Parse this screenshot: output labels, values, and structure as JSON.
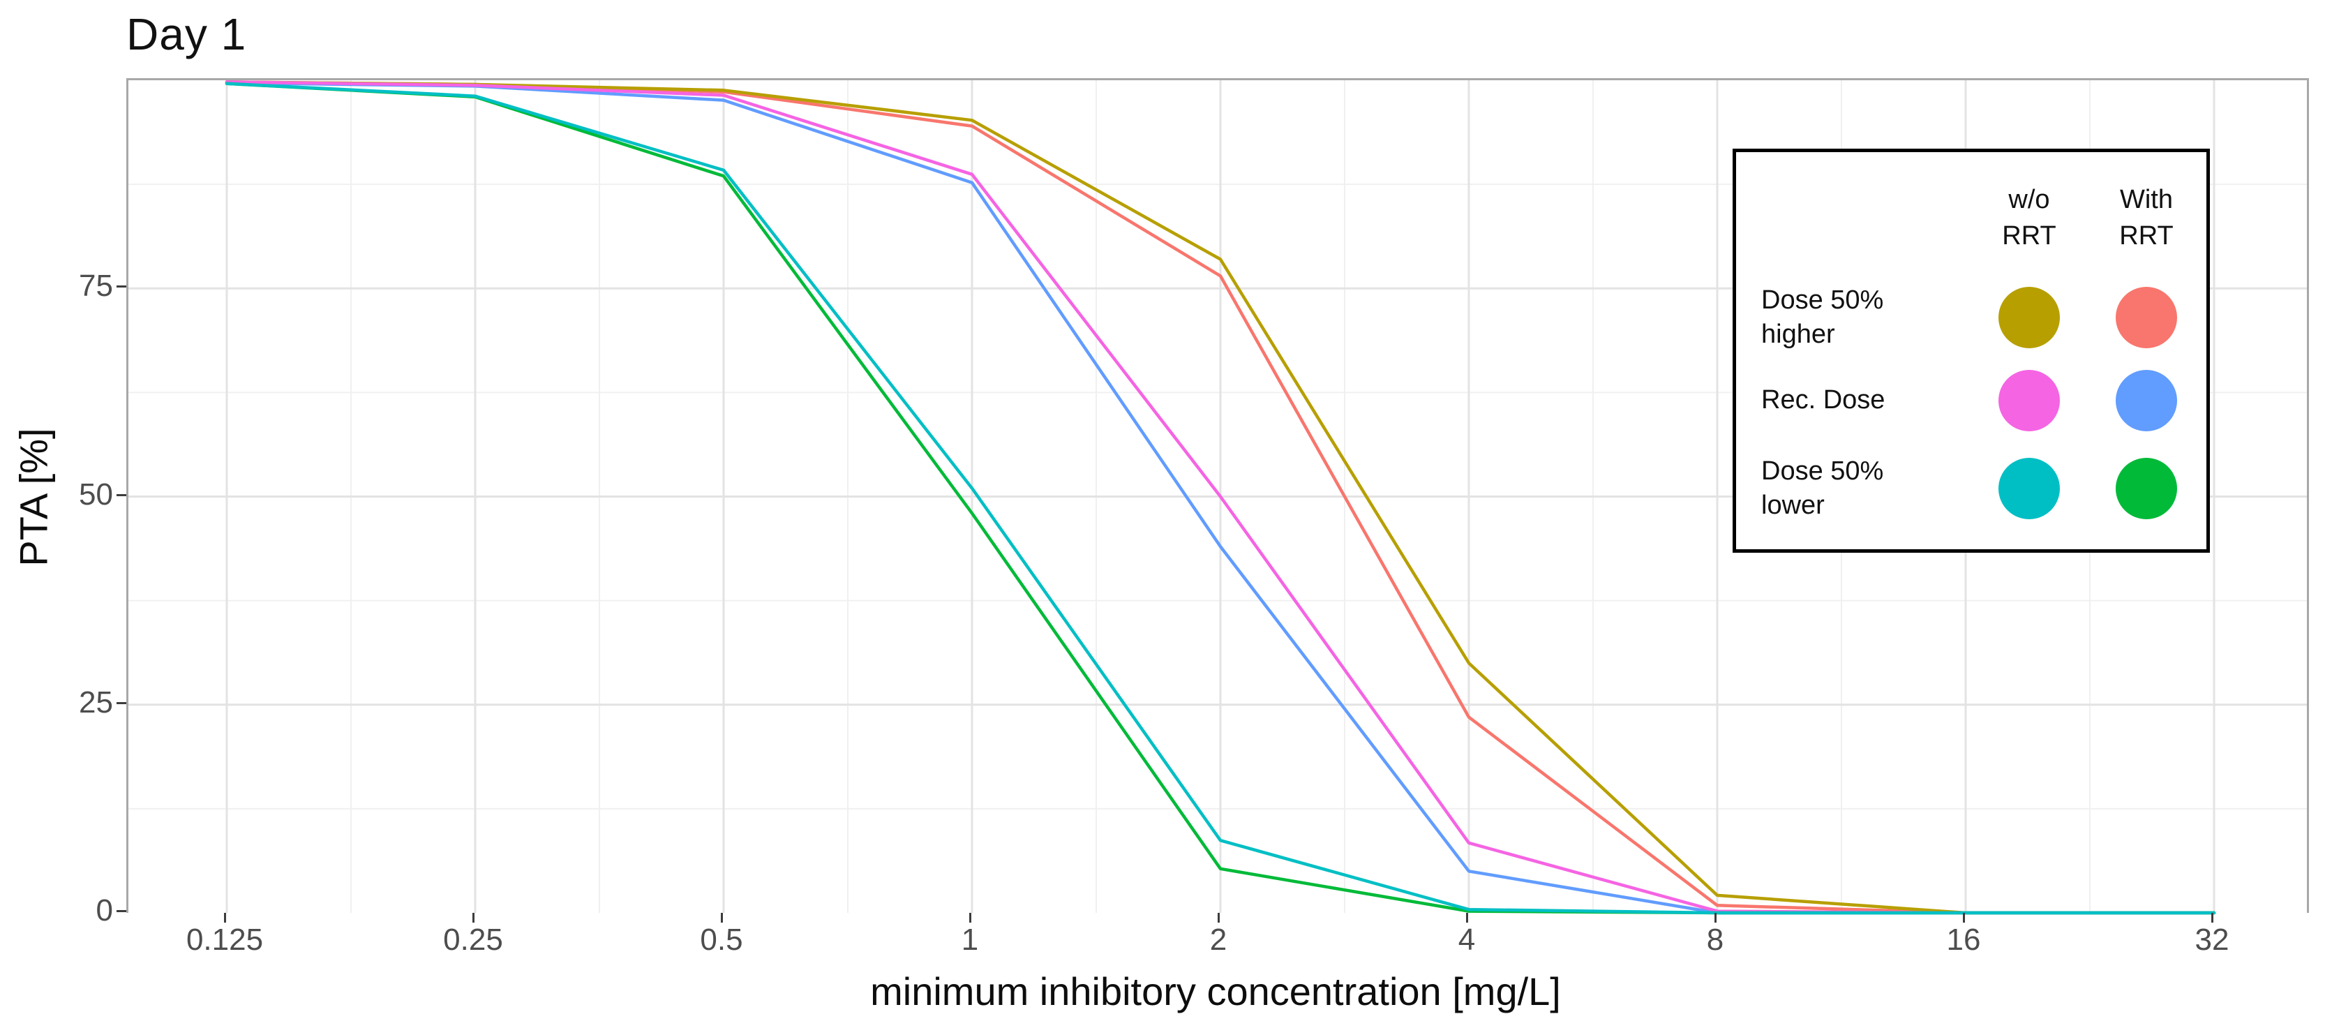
{
  "title": "Day 1",
  "chart_data": {
    "type": "line",
    "title": "Day 1",
    "xlabel": "minimum inhibitory concentration [mg/L]",
    "ylabel": "PTA [%]",
    "x_scale": "log2",
    "x": [
      0.125,
      0.25,
      0.5,
      1,
      2,
      4,
      8,
      16,
      32
    ],
    "x_tick_labels": [
      "0.125",
      "0.25",
      "0.5",
      "1",
      "2",
      "4",
      "8",
      "16",
      "32"
    ],
    "y_tick_values": [
      0,
      25,
      50,
      75
    ],
    "y_tick_labels": [
      "0",
      "25",
      "50",
      "75"
    ],
    "y_minor_values": [
      12.5,
      37.5,
      62.5,
      87.5
    ],
    "ylim": [
      0,
      100
    ],
    "grid": "major+minor",
    "legend_position": "inside-top-right",
    "series": [
      {
        "name": "Dose 50% higher — w/o RRT",
        "color": "#B79F00",
        "values": [
          99.8,
          99.5,
          98.8,
          95.2,
          78.5,
          30.0,
          2.1,
          0,
          0
        ]
      },
      {
        "name": "Dose 50% higher — With RRT",
        "color": "#F8766D",
        "values": [
          99.8,
          99.5,
          98.6,
          94.5,
          76.5,
          23.5,
          0.9,
          0,
          0
        ]
      },
      {
        "name": "Rec. Dose — w/o RRT",
        "color": "#F564E3",
        "values": [
          99.8,
          99.4,
          98.2,
          88.7,
          50.0,
          8.4,
          0.2,
          0,
          0
        ]
      },
      {
        "name": "Rec. Dose — With RRT",
        "color": "#619CFF",
        "values": [
          99.7,
          99.3,
          97.6,
          87.7,
          44.0,
          5.0,
          0,
          0,
          0
        ]
      },
      {
        "name": "Dose 50% lower — w/o RRT",
        "color": "#00BFC4",
        "values": [
          99.6,
          98.1,
          89.2,
          51.0,
          8.7,
          0.4,
          0,
          0,
          0
        ]
      },
      {
        "name": "Dose 50% lower — With RRT",
        "color": "#00BA38",
        "values": [
          99.6,
          98.0,
          88.5,
          48.0,
          5.3,
          0.2,
          0,
          0,
          0
        ]
      }
    ]
  },
  "legend": {
    "columns": [
      {
        "lines": [
          "w/o",
          "RRT"
        ]
      },
      {
        "lines": [
          "With",
          "RRT"
        ]
      }
    ],
    "rows": [
      {
        "lines": [
          "Dose 50%",
          "higher"
        ],
        "wo_color": "#B79F00",
        "with_color": "#F8766D"
      },
      {
        "lines": [
          "Rec. Dose",
          ""
        ],
        "wo_color": "#F564E3",
        "with_color": "#619CFF"
      },
      {
        "lines": [
          "Dose 50%",
          "lower"
        ],
        "wo_color": "#00BFC4",
        "with_color": "#00BA38"
      }
    ]
  },
  "colors": {
    "major_grid": "#e3e3e3",
    "minor_grid": "#f0f0f0",
    "panel_border": "#a8a8a8",
    "axis_line": "#8a8a8a",
    "tick_text": "#4d4d4d",
    "text": "#111111"
  }
}
